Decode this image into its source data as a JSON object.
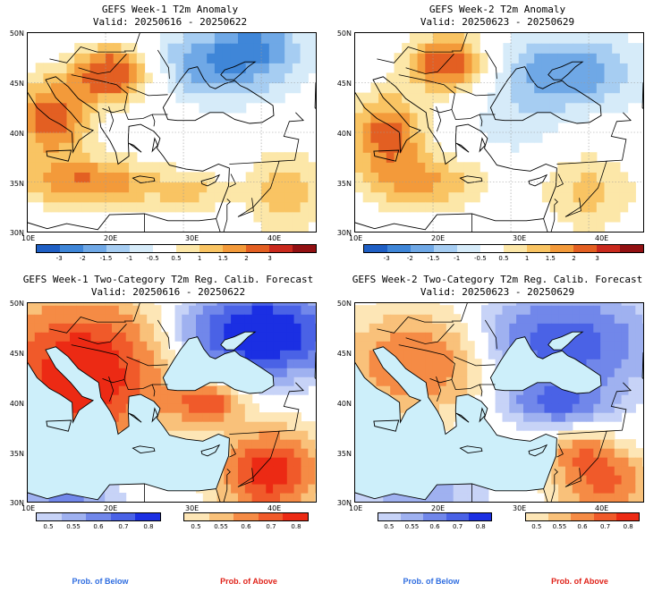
{
  "panels": [
    {
      "title": "GEFS Week-1 T2m Anomaly",
      "valid": "Valid: 20250616 - 20250622"
    },
    {
      "title": "GEFS Week-2 T2m Anomaly",
      "valid": "Valid: 20250623 - 20250629"
    },
    {
      "title": "GEFS Week-1 Two-Category T2m Reg. Calib. Forecast",
      "valid": "Valid: 20250616 - 20250622"
    },
    {
      "title": "GEFS Week-2 Two-Category T2m Reg. Calib. Forecast",
      "valid": "Valid: 20250623 - 20250629"
    }
  ],
  "lat_labels": [
    "50N",
    "45N",
    "40N",
    "35N",
    "30N"
  ],
  "lon_labels": [
    "10E",
    "20E",
    "30E",
    "40E"
  ],
  "anomaly_colorbar": {
    "labels": [
      "-3",
      "-2",
      "-1.5",
      "-1",
      "-0.5",
      "0.5",
      "1",
      "1.5",
      "2",
      "3"
    ],
    "colors": [
      "#1f5fc4",
      "#3f86d8",
      "#6fa8e6",
      "#a6cdf2",
      "#d6ebf9",
      "#ffffff",
      "#fce7a8",
      "#f9c463",
      "#f39a3a",
      "#e35f22",
      "#c9291d",
      "#921012"
    ]
  },
  "prob_colorbar": {
    "below_labels": [
      "0.5",
      "0.55",
      "0.6",
      "0.7",
      "0.8"
    ],
    "above_labels": [
      "0.5",
      "0.55",
      "0.6",
      "0.7",
      "0.8"
    ],
    "below_colors": [
      "#c7d3f7",
      "#9fb1f0",
      "#7187ea",
      "#4a62e6",
      "#1b2fe3"
    ],
    "above_colors": [
      "#fde6b6",
      "#f9c17a",
      "#f58b45",
      "#f05a2a",
      "#ec2a14"
    ]
  },
  "prob_below_label": "Prob. of Below",
  "prob_above_label": "Prob. of Above",
  "sea_color": "#cdeffa"
}
